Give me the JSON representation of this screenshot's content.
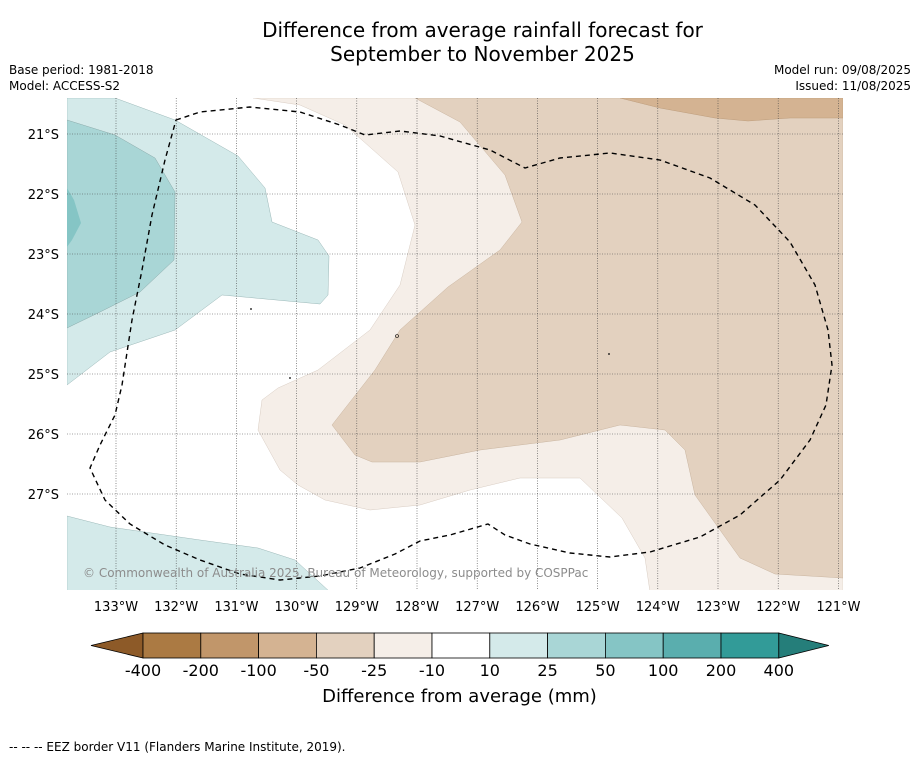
{
  "title_line1": "Difference from average rainfall forecast for",
  "title_line2": "September to November 2025",
  "base_period": "Base period: 1981-2018",
  "model": "Model: ACCESS-S2",
  "model_run": "Model run: 09/08/2025",
  "issued": "Issued: 11/08/2025",
  "copyright": "© Commonwealth of Australia 2025, Bureau of Meteorology, supported by COSPPac",
  "lat_labels": [
    "21°S",
    "22°S",
    "23°S",
    "24°S",
    "25°S",
    "26°S",
    "27°S"
  ],
  "lon_labels": [
    "133°W",
    "132°W",
    "131°W",
    "130°W",
    "129°W",
    "128°W",
    "127°W",
    "126°W",
    "125°W",
    "124°W",
    "123°W",
    "122°W",
    "121°W"
  ],
  "colorbar": {
    "ticks": [
      "-400",
      "-200",
      "-100",
      "-50",
      "-25",
      "-10",
      "10",
      "25",
      "50",
      "100",
      "200",
      "400"
    ],
    "colors": [
      "#ab7a43",
      "#c1966a",
      "#d4b392",
      "#e3d1bf",
      "#f5eee8",
      "#ffffff",
      "#d4eaea",
      "#a9d6d6",
      "#85c5c5",
      "#5aaeae",
      "#329b98"
    ],
    "low_extend_color": "#8d5a28",
    "high_extend_color": "#257e7a",
    "title": "Difference from average (mm)"
  },
  "footer": "--  --  -- EEZ border V11 (Flanders Marine Institute, 2019)."
}
